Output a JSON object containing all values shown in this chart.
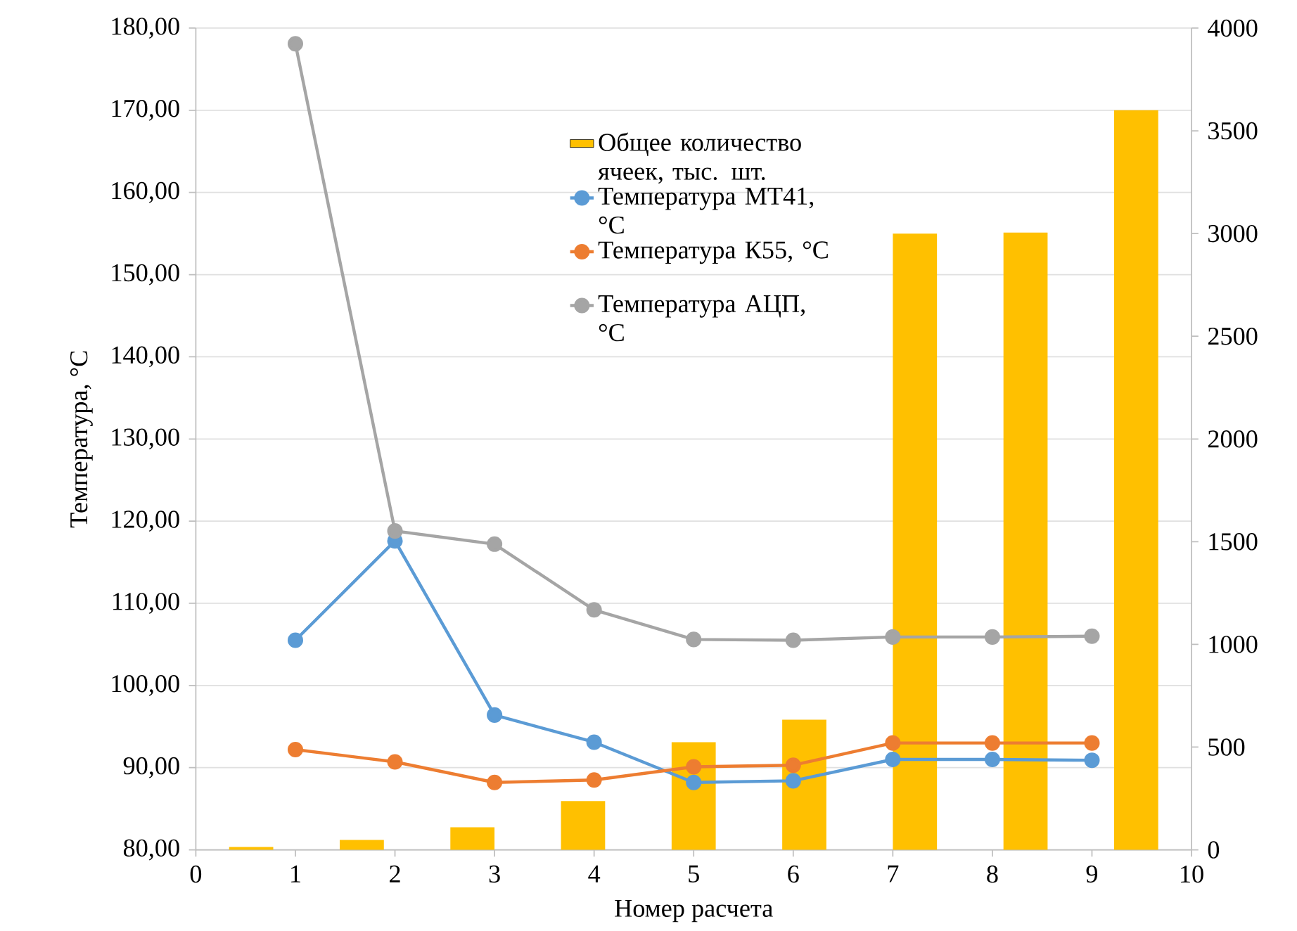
{
  "chart_data": {
    "type": "bar",
    "xlabel": "Номер расчета",
    "ylabel": "Температура, °С",
    "xlim": [
      0,
      10
    ],
    "xticks": [
      0,
      1,
      2,
      3,
      4,
      5,
      6,
      7,
      8,
      9,
      10
    ],
    "ylim": [
      80,
      180
    ],
    "yticks": [
      {
        "value": 80,
        "label": "80,00"
      },
      {
        "value": 90,
        "label": "90,00"
      },
      {
        "value": 100,
        "label": "100,00"
      },
      {
        "value": 110,
        "label": "110,00"
      },
      {
        "value": 120,
        "label": "120,00"
      },
      {
        "value": 130,
        "label": "130,00"
      },
      {
        "value": 140,
        "label": "140,00"
      },
      {
        "value": 150,
        "label": "150,00"
      },
      {
        "value": 160,
        "label": "160,00"
      },
      {
        "value": 170,
        "label": "170,00"
      },
      {
        "value": 180,
        "label": "180,00"
      }
    ],
    "y2lim": [
      0,
      4000
    ],
    "y2ticks": [
      0,
      500,
      1000,
      1500,
      2000,
      2500,
      3000,
      3500,
      4000
    ],
    "grid": "y",
    "legend": "top",
    "marker": "circle",
    "line_style": "solid",
    "series": [
      {
        "name": "Общее количество ячеек, тыс. шт.",
        "axis": "y2",
        "color": "#ffc000",
        "x": [
          0.556,
          1.667,
          2.778,
          3.889,
          5,
          6.111,
          7.222,
          8.333,
          9.444
        ],
        "values": [
          14,
          48,
          110,
          237,
          524,
          633,
          3000,
          3005,
          3600
        ]
      },
      {
        "name": "Температура МТ41, °С",
        "type": "line",
        "color": "#5b9bd5",
        "x": [
          1,
          2,
          3,
          4,
          5,
          6,
          7,
          8,
          9
        ],
        "values": [
          105.5,
          117.6,
          96.4,
          93.1,
          88.2,
          88.4,
          91.0,
          91.0,
          90.9
        ]
      },
      {
        "name": "Температура К55, °С",
        "type": "line",
        "color": "#ed7d31",
        "x": [
          1,
          2,
          3,
          4,
          5,
          6,
          7,
          8,
          9
        ],
        "values": [
          92.2,
          90.7,
          88.2,
          88.5,
          90.1,
          90.3,
          93.0,
          93.0,
          93.0
        ]
      },
      {
        "name": "Температура АЦП, °С",
        "type": "line",
        "color": "#a5a5a5",
        "x": [
          1,
          2,
          3,
          4,
          5,
          6,
          7,
          8,
          9
        ],
        "values": [
          178.1,
          118.8,
          117.2,
          109.2,
          105.6,
          105.5,
          105.9,
          105.9,
          106.0
        ]
      }
    ]
  }
}
